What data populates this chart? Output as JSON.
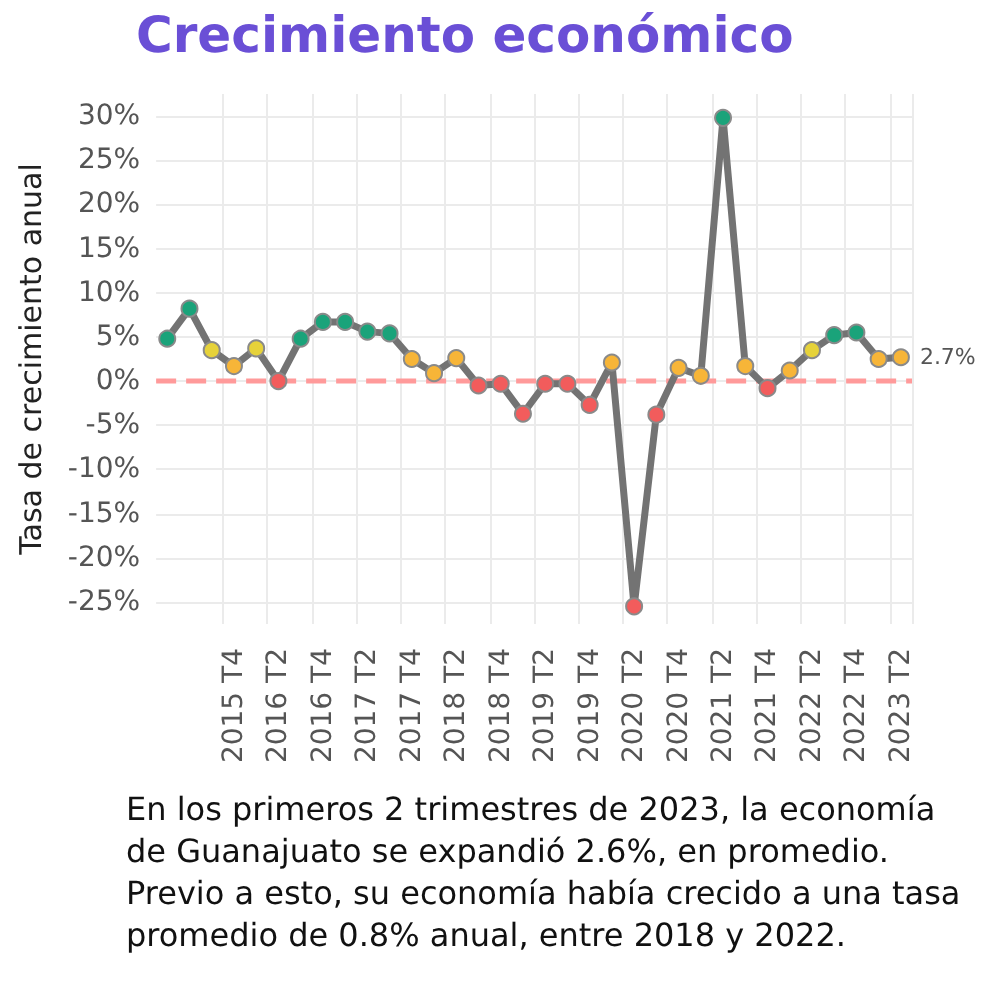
{
  "chart_data": {
    "type": "line",
    "title": "Crecimiento económico",
    "ylabel": "Tasa de crecimiento anual",
    "categories": [
      null,
      null,
      null,
      "2015 T4",
      null,
      "2016 T2",
      null,
      "2016 T4",
      null,
      "2017 T2",
      null,
      "2017 T4",
      null,
      "2018 T2",
      null,
      "2018 T4",
      null,
      "2019 T2",
      null,
      "2019 T4",
      null,
      "2020 T2",
      null,
      "2020 T4",
      null,
      "2021 T2",
      null,
      "2021 T4",
      null,
      "2022 T2",
      null,
      "2022 T4",
      null,
      "2023 T2"
    ],
    "series": [
      {
        "color": "#737373",
        "values": [
          4.8,
          8.2,
          3.5,
          1.7,
          3.7,
          0,
          4.8,
          6.7,
          6.7,
          5.6,
          5.4,
          2.5,
          0.9,
          2.6,
          -0.5,
          -0.3,
          -3.7,
          -0.3,
          -0.3,
          -2.7,
          2.1,
          -25.5,
          -3.8,
          1.5,
          0.6,
          29.8,
          1.7,
          -0.8,
          1.2,
          3.5,
          5.2,
          5.5,
          2.5,
          2.7
        ],
        "colors": [
          "#1aa37a",
          "#1aa37a",
          "#e6d23a",
          "#f7b538",
          "#e6d23a",
          "#f25c5c",
          "#1aa37a",
          "#1aa37a",
          "#1aa37a",
          "#1aa37a",
          "#1aa37a",
          "#f7b538",
          "#f7b538",
          "#f7b538",
          "#f25c5c",
          "#f25c5c",
          "#f25c5c",
          "#f25c5c",
          "#f25c5c",
          "#f25c5c",
          "#f7b538",
          "#f25c5c",
          "#f25c5c",
          "#f7b538",
          "#f7b538",
          "#1aa37a",
          "#f7b538",
          "#f25c5c",
          "#f7b538",
          "#e6d23a",
          "#1aa37a",
          "#1aa37a",
          "#f7b538",
          "#f7b538"
        ],
        "value_labels": [
          null,
          null,
          null,
          null,
          null,
          null,
          null,
          null,
          null,
          null,
          null,
          null,
          null,
          null,
          null,
          null,
          null,
          null,
          null,
          null,
          null,
          null,
          null,
          null,
          null,
          null,
          null,
          null,
          null,
          null,
          null,
          null,
          null,
          "2.7%"
        ]
      }
    ],
    "ylim": [
      -27.5,
      32.5
    ],
    "yticks": [
      {
        "value": -25,
        "label": "-25%"
      },
      {
        "value": -20,
        "label": "-20%"
      },
      {
        "value": -15,
        "label": "-15%"
      },
      {
        "value": -10,
        "label": "-10%"
      },
      {
        "value": -5,
        "label": "-5%"
      },
      {
        "value": 0,
        "label": "0%"
      },
      {
        "value": 5,
        "label": "5%"
      },
      {
        "value": 10,
        "label": "10%"
      },
      {
        "value": 15,
        "label": "15%"
      },
      {
        "value": 20,
        "label": "20%"
      },
      {
        "value": 25,
        "label": "25%"
      },
      {
        "value": 30,
        "label": "30%"
      }
    ],
    "ref_lines": [
      {
        "axis": "y",
        "value": 0,
        "color": "#ff9a9a",
        "line_style": "dashed"
      }
    ],
    "grid": true,
    "marker": "circle",
    "line_style": "solid",
    "annotations": [
      "En los primeros 2 trimestres de 2023, la economía de Guanajuato se expandió 2.6%, en promedio. Previo a esto, su economía había crecido a una tasa promedio de 0.8% anual, entre 2018 y 2022."
    ]
  }
}
